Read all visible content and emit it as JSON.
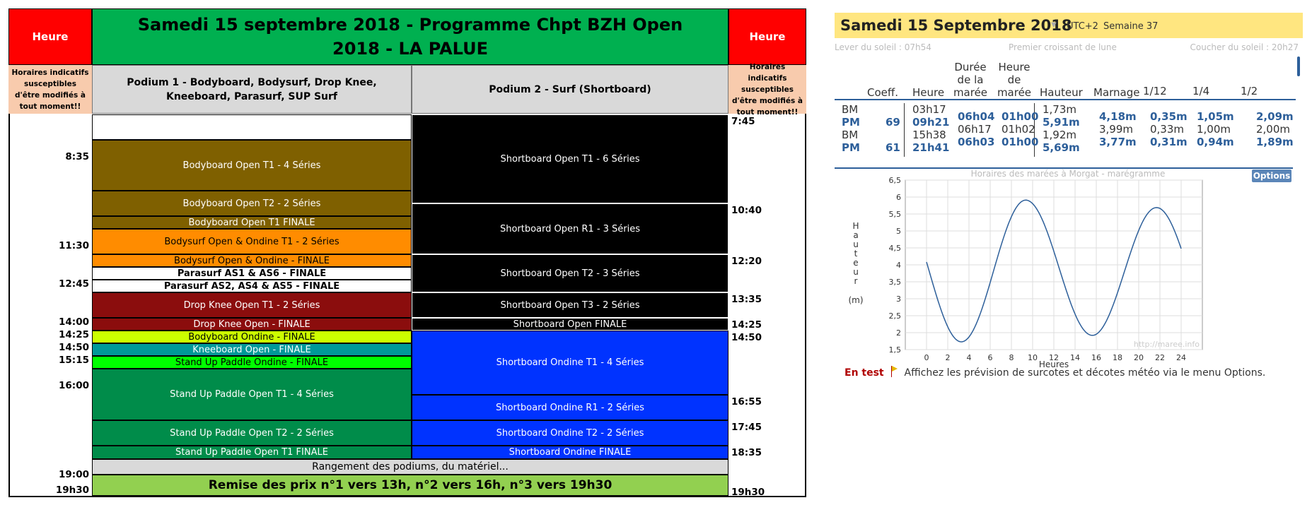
{
  "schedule": {
    "left_header": "Heure",
    "right_header": "Heure",
    "title": "Samedi 15 septembre 2018 - Programme Chpt BZH Open 2018 - LA PALUE",
    "note_left": "Horaires indicatifs susceptibles d'être modifiés à tout moment!!",
    "note_right": "Horaires indicatifs susceptibles d'être modifiés à tout moment!!",
    "podium1": "Podium 1 - Bodyboard, Bodysurf, Drop Knee, Kneeboard, Parasurf, SUP Surf",
    "podium2": "Podium 2 - Surf (Shortboard)",
    "p1_events": [
      "Bodyboard Open T1 - 4 Séries",
      "Bodyboard Open T2 - 2 Séries",
      "Bodyboard Open T1 FINALE",
      "Bodysurf Open & Ondine T1 - 2 Séries",
      "Bodysurf Open & Ondine - FINALE",
      "Parasurf AS1 & AS6 - FINALE",
      "Parasurf AS2, AS4 & AS5 - FINALE",
      "Drop Knee Open T1 - 2 Séries",
      "Drop Knee Open - FINALE",
      "Bodyboard Ondine - FINALE",
      "Kneeboard Open - FINALE",
      "Stand Up Paddle Ondine - FINALE",
      "Stand Up Paddle Open T1 - 4 Séries",
      "Stand Up Paddle Open T2 - 2 Séries",
      "Stand Up Paddle Open T1 FINALE"
    ],
    "p2_events": [
      "Shortboard Open T1 - 6 Séries",
      "Shortboard Open R1 - 3 Séries",
      "Shortboard Open T2 - 3 Séries",
      "Shortboard Open T3 - 2 Séries",
      "Shortboard Open FINALE",
      "Shortboard Ondine T1 - 4 Séries",
      "Shortboard Ondine R1 - 2 Séries",
      "Shortboard Ondine T2 - 2 Séries",
      "Shortboard Ondine FINALE"
    ],
    "rangement": "Rangement des podiums, du matériel...",
    "remise": "Remise des prix n°1 vers 13h, n°2 vers 16h, n°3 vers 19h30",
    "left_times": [
      "8:35",
      "11:30",
      "12:45",
      "14:00",
      "14:25",
      "14:50",
      "15:15",
      "16:00",
      "19:00",
      "19h30"
    ],
    "right_times": [
      "7:45",
      "10:40",
      "12:20",
      "13:35",
      "14:25",
      "14:50",
      "16:55",
      "17:45",
      "18:35",
      "19h30"
    ],
    "colors": {
      "red": "#ff0000",
      "green": "#00b050",
      "lightgreen": "#92d050",
      "brown": "#7f6000",
      "orange": "#ff8c00",
      "darkred": "#8b0d0d",
      "lime": "#ccff00",
      "teal": "#009999",
      "brightgreen": "#00ff00",
      "medgreen": "#008c4a",
      "blue": "#0033ff",
      "peach": "#f8cbad",
      "grey": "#d9d9d9"
    }
  },
  "tide": {
    "date": "Samedi 15 Septembre 2018",
    "utc": "UTC+2",
    "week": "Semaine 37",
    "sunrise": "Lever du soleil : 07h54",
    "moon": "Premier croissant de lune",
    "sunset": "Coucher du soleil : 20h27",
    "headers": {
      "coeff": "Coeff.",
      "heure": "Heure",
      "duree": "Durée de la marée",
      "heure_maree": "Heure de marée",
      "hauteur": "Hauteur",
      "marnage": "Marnage",
      "f12": "1/12",
      "f4": "1/4",
      "f2": "1/2"
    },
    "types": [
      "BM",
      "PM",
      "BM",
      "PM"
    ],
    "coeffs": [
      "69",
      "61"
    ],
    "heures": [
      "03h17",
      "09h21",
      "15h38",
      "21h41"
    ],
    "durees": [
      "06h04",
      "06h17",
      "06h03"
    ],
    "heures_maree": [
      "01h00",
      "01h02",
      "01h00"
    ],
    "hauteurs": [
      "1,73m",
      "5,91m",
      "1,92m",
      "5,69m"
    ],
    "marnages": [
      "4,18m",
      "3,99m",
      "3,77m"
    ],
    "douzieme": [
      "0,35m",
      "0,33m",
      "0,31m"
    ],
    "quart": [
      "1,05m",
      "1,00m",
      "0,94m"
    ],
    "demi": [
      "2,09m",
      "2,00m",
      "1,89m"
    ],
    "options": "Options",
    "en_test": "En test",
    "footer": "Affichez les prévision de surcotes et décotes météo via le menu Options.",
    "watermark": "http://maree.info"
  },
  "chart_data": {
    "type": "line",
    "title": "Horaires des marées à Morgat - marégramme",
    "xlabel": "Heures",
    "ylabel": "Hauteur (m)",
    "xlim": [
      -2,
      26
    ],
    "ylim": [
      1.5,
      6.5
    ],
    "xticks": [
      "0",
      "2",
      "4",
      "6",
      "8",
      "10",
      "12",
      "14",
      "16",
      "18",
      "20",
      "22",
      "24"
    ],
    "yticks": [
      "1,5",
      "2",
      "2,5",
      "3",
      "3,5",
      "4",
      "4,5",
      "5",
      "5,5",
      "6",
      "6,5"
    ],
    "extrema": [
      {
        "x": 3.28,
        "y": 1.73
      },
      {
        "x": 9.35,
        "y": 5.91
      },
      {
        "x": 15.63,
        "y": 1.92
      },
      {
        "x": 21.68,
        "y": 5.69
      }
    ],
    "start": {
      "x": 0,
      "y": 4.05
    },
    "end": {
      "x": 24,
      "y": 4.55
    },
    "grid": true
  }
}
